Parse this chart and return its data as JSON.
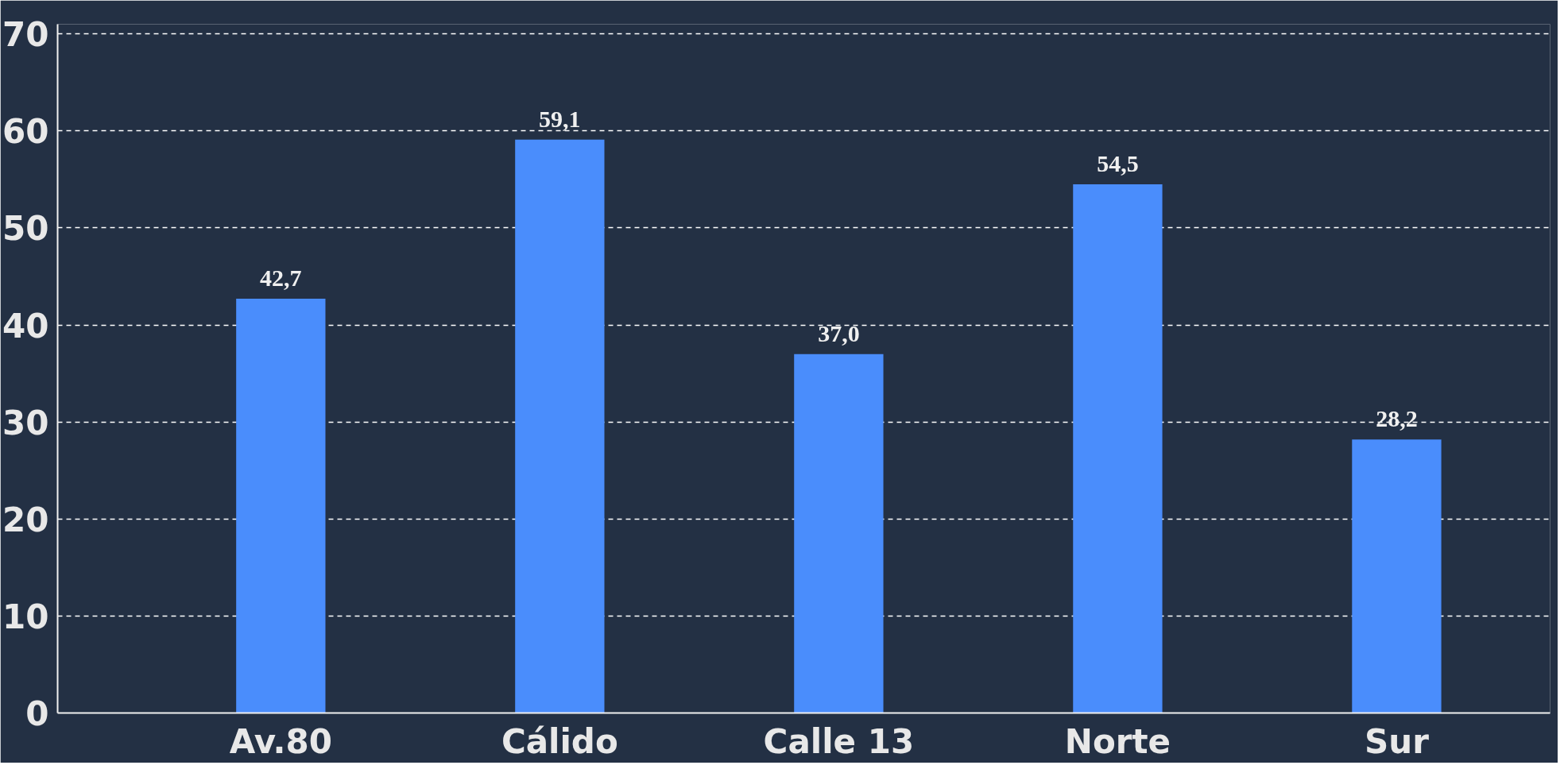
{
  "chart_data": {
    "type": "bar",
    "categories": [
      "Av.80",
      "Cálido",
      "Calle 13",
      "Norte",
      "Sur"
    ],
    "values": [
      42.7,
      59.1,
      37.0,
      54.5,
      28.2
    ],
    "value_labels": [
      "42,7",
      "59,1",
      "37,0",
      "54,5",
      "28,2"
    ],
    "color": "#4a8dfc",
    "ylim": [
      0,
      71
    ],
    "yticks": [
      0,
      10,
      20,
      30,
      40,
      50,
      60,
      70
    ],
    "grid": "y"
  }
}
